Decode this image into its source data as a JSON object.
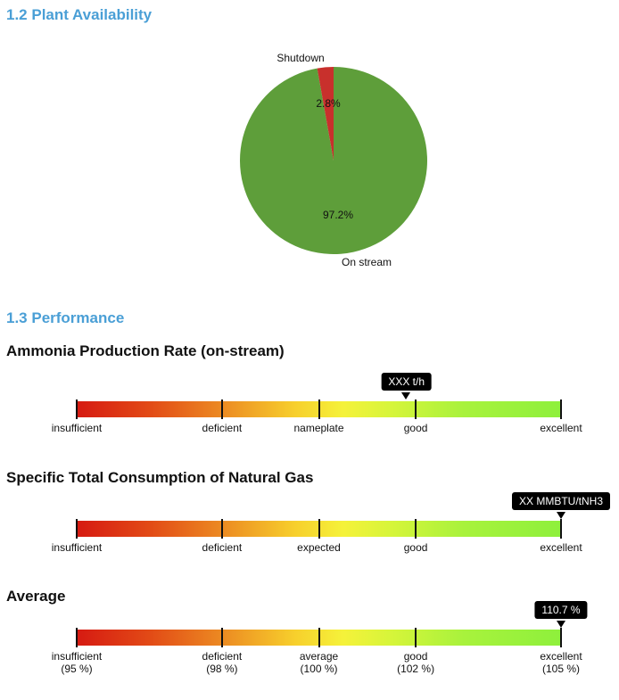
{
  "availability": {
    "title": "1.2 Plant Availability",
    "chart_data": {
      "type": "pie",
      "slices": [
        {
          "label": "On stream",
          "value": 97.2,
          "value_label": "97.2%",
          "color": "#5e9e3a"
        },
        {
          "label": "Shutdown",
          "value": 2.8,
          "value_label": "2.8%",
          "color": "#c8302c"
        }
      ]
    }
  },
  "performance": {
    "title": "1.3 Performance",
    "gauges": [
      {
        "title": "Ammonia Production Rate (on-stream)",
        "marker_text": "XXX t/h",
        "marker_position": 0.69,
        "ticks": [
          {
            "label": "insufficient",
            "sub": ""
          },
          {
            "label": "deficient",
            "sub": ""
          },
          {
            "label": "nameplate",
            "sub": ""
          },
          {
            "label": "good",
            "sub": ""
          },
          {
            "label": "excellent",
            "sub": ""
          }
        ]
      },
      {
        "title": "Specific Total Consumption of Natural Gas",
        "marker_text": "XX MMBTU/tNH3",
        "marker_position": 1.0,
        "ticks": [
          {
            "label": "insufficient",
            "sub": ""
          },
          {
            "label": "deficient",
            "sub": ""
          },
          {
            "label": "expected",
            "sub": ""
          },
          {
            "label": "good",
            "sub": ""
          },
          {
            "label": "excellent",
            "sub": ""
          }
        ]
      },
      {
        "title": "Average",
        "marker_text": "110.7 %",
        "marker_position": 1.0,
        "ticks": [
          {
            "label": "insufficient",
            "sub": "(95 %)"
          },
          {
            "label": "deficient",
            "sub": "(98 %)"
          },
          {
            "label": "average",
            "sub": "(100 %)"
          },
          {
            "label": "good",
            "sub": "(102 %)"
          },
          {
            "label": "excellent",
            "sub": "(105 %)"
          }
        ]
      }
    ]
  }
}
